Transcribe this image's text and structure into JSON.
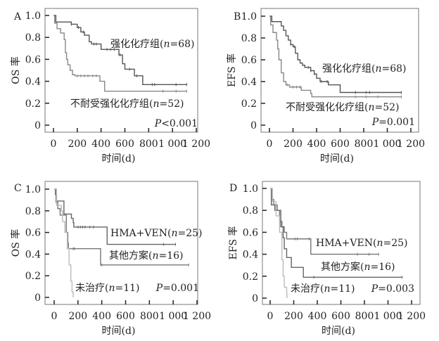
{
  "chart_data": [
    {
      "panel": "A",
      "type": "line",
      "ylabel": "OS 率",
      "xlabel": "时间(d)",
      "xticks": [
        "0",
        "200",
        "400",
        "600",
        "800",
        "1 000",
        "1 200"
      ],
      "yticks": [
        "0",
        "0.2",
        "0.4",
        "0.6",
        "0.8",
        "1.0"
      ],
      "xlim": [
        0,
        1200
      ],
      "ylim": [
        0,
        1
      ],
      "p_sym": "P",
      "p_rest": "<0.001",
      "series": [
        {
          "label_pre": "强化化疗组(",
          "label_n": "n",
          "label_post": "=68)",
          "color": "#555555",
          "steps": [
            [
              0,
              1
            ],
            [
              20,
              0.94
            ],
            [
              130,
              0.94
            ],
            [
              150,
              0.92
            ],
            [
              200,
              0.89
            ],
            [
              230,
              0.85
            ],
            [
              260,
              0.82
            ],
            [
              300,
              0.76
            ],
            [
              320,
              0.74
            ],
            [
              400,
              0.69
            ],
            [
              540,
              0.69
            ],
            [
              550,
              0.64
            ],
            [
              580,
              0.56
            ],
            [
              600,
              0.51
            ],
            [
              680,
              0.45
            ],
            [
              750,
              0.37
            ],
            [
              1120,
              0.37
            ]
          ],
          "censored": [
            150,
            210,
            250,
            340,
            360,
            450,
            480,
            510,
            560,
            640,
            700,
            830,
            850,
            1030,
            1120
          ]
        },
        {
          "label_pre": "不耐受强化化疗组(",
          "label_n": "n",
          "label_post": "=52)",
          "color": "#888888",
          "steps": [
            [
              0,
              1
            ],
            [
              10,
              0.93
            ],
            [
              30,
              0.88
            ],
            [
              60,
              0.84
            ],
            [
              90,
              0.78
            ],
            [
              100,
              0.66
            ],
            [
              110,
              0.6
            ],
            [
              120,
              0.55
            ],
            [
              140,
              0.5
            ],
            [
              160,
              0.46
            ],
            [
              180,
              0.45
            ],
            [
              390,
              0.4
            ],
            [
              430,
              0.31
            ],
            [
              1120,
              0.31
            ]
          ],
          "censored": [
            200,
            230,
            260,
            290,
            330,
            360,
            920,
            1030,
            1120
          ]
        }
      ]
    },
    {
      "panel": "B",
      "type": "line",
      "ylabel": "EFS 率",
      "xlabel": "时间(d)",
      "xticks": [
        "0",
        "200",
        "400",
        "600",
        "800",
        "1 000",
        "1 200"
      ],
      "yticks": [
        "0",
        "0.2",
        "0.4",
        "0.6",
        "0.8",
        "1.0"
      ],
      "xlim": [
        0,
        1200
      ],
      "ylim": [
        0,
        1
      ],
      "p_sym": "P",
      "p_rest": "=0.001",
      "series": [
        {
          "label_pre": "强化化疗组(",
          "label_n": "n",
          "label_post": "=68)",
          "color": "#555555",
          "steps": [
            [
              0,
              1
            ],
            [
              20,
              0.95
            ],
            [
              80,
              0.95
            ],
            [
              100,
              0.91
            ],
            [
              120,
              0.87
            ],
            [
              140,
              0.82
            ],
            [
              160,
              0.78
            ],
            [
              180,
              0.74
            ],
            [
              200,
              0.72
            ],
            [
              220,
              0.66
            ],
            [
              240,
              0.6
            ],
            [
              260,
              0.57
            ],
            [
              280,
              0.55
            ],
            [
              300,
              0.53
            ],
            [
              340,
              0.53
            ],
            [
              350,
              0.5
            ],
            [
              380,
              0.47
            ],
            [
              400,
              0.43
            ],
            [
              430,
              0.4
            ],
            [
              500,
              0.37
            ],
            [
              600,
              0.3
            ],
            [
              1120,
              0.3
            ]
          ],
          "censored": [
            180,
            210,
            330,
            350,
            380,
            440,
            490,
            730,
            820,
            850,
            1120
          ]
        },
        {
          "label_pre": "不耐受强化化疗组(",
          "label_n": "n",
          "label_post": "=52)",
          "color": "#888888",
          "steps": [
            [
              0,
              1
            ],
            [
              10,
              0.92
            ],
            [
              30,
              0.85
            ],
            [
              60,
              0.78
            ],
            [
              70,
              0.7
            ],
            [
              80,
              0.6
            ],
            [
              100,
              0.48
            ],
            [
              120,
              0.4
            ],
            [
              140,
              0.37
            ],
            [
              170,
              0.35
            ],
            [
              270,
              0.32
            ],
            [
              350,
              0.29
            ],
            [
              360,
              0.26
            ],
            [
              1120,
              0.26
            ]
          ],
          "censored": [
            150,
            200,
            230,
            260,
            730,
            820,
            920,
            1120
          ]
        }
      ]
    },
    {
      "panel": "C",
      "type": "line",
      "ylabel": "OS 率",
      "xlabel": "时间(d)",
      "xticks": [
        "0",
        "200",
        "400",
        "600",
        "800",
        "1 000",
        "1 200"
      ],
      "yticks": [
        "0",
        "0.2",
        "0.4",
        "0.6",
        "0.8",
        "1.0"
      ],
      "xlim": [
        0,
        1200
      ],
      "ylim": [
        0,
        1
      ],
      "p_sym": "P",
      "p_rest": "=0.001",
      "series": [
        {
          "label_pre": "HMA+VEN(",
          "label_n": "n",
          "label_post": "=25)",
          "color": "#666666",
          "steps": [
            [
              0,
              1
            ],
            [
              10,
              0.95
            ],
            [
              20,
              0.89
            ],
            [
              80,
              0.89
            ],
            [
              82,
              0.77
            ],
            [
              140,
              0.77
            ],
            [
              145,
              0.73
            ],
            [
              160,
              0.69
            ],
            [
              165,
              0.65
            ],
            [
              440,
              0.65
            ],
            [
              445,
              0.49
            ],
            [
              1020,
              0.49
            ]
          ],
          "censored": [
            200,
            220,
            240,
            260,
            300,
            330,
            920,
            1020
          ]
        },
        {
          "label_pre": "其他方案(",
          "label_n": "n",
          "label_post": "=16)",
          "color": "#777777",
          "steps": [
            [
              0,
              1
            ],
            [
              15,
              0.88
            ],
            [
              30,
              0.82
            ],
            [
              50,
              0.76
            ],
            [
              100,
              0.76
            ],
            [
              102,
              0.6
            ],
            [
              115,
              0.5
            ],
            [
              120,
              0.45
            ],
            [
              380,
              0.45
            ],
            [
              390,
              0.3
            ],
            [
              1130,
              0.3
            ]
          ],
          "censored": [
            160,
            170,
            400,
            1130
          ]
        },
        {
          "label_pre": "未治疗(",
          "label_n": "n",
          "label_post": "=11)",
          "color": "#bbbbbb",
          "steps": [
            [
              0,
              1
            ],
            [
              20,
              0.85
            ],
            [
              60,
              0.8
            ],
            [
              70,
              0.7
            ],
            [
              90,
              0.6
            ],
            [
              110,
              0.45
            ],
            [
              125,
              0.3
            ],
            [
              140,
              0.15
            ],
            [
              150,
              0.05
            ],
            [
              160,
              0
            ]
          ],
          "censored": []
        }
      ]
    },
    {
      "panel": "D",
      "type": "line",
      "ylabel": "EFS 率",
      "xlabel": "时间(d)",
      "xticks": [
        "0",
        "200",
        "400",
        "600",
        "800",
        "1 000",
        "1 200"
      ],
      "yticks": [
        "0",
        "0.2",
        "0.4",
        "0.6",
        "0.8",
        "1.0"
      ],
      "xlim": [
        0,
        1200
      ],
      "ylim": [
        0,
        1
      ],
      "p_sym": "P",
      "p_rest": "=0.003",
      "series": [
        {
          "label_pre": "HMA+VEN(",
          "label_n": "n",
          "label_post": "=25)",
          "color": "#777777",
          "steps": [
            [
              0,
              1
            ],
            [
              10,
              0.9
            ],
            [
              30,
              0.85
            ],
            [
              50,
              0.85
            ],
            [
              60,
              0.8
            ],
            [
              80,
              0.7
            ],
            [
              100,
              0.65
            ],
            [
              120,
              0.6
            ],
            [
              140,
              0.54
            ],
            [
              340,
              0.54
            ],
            [
              345,
              0.4
            ],
            [
              920,
              0.4
            ]
          ],
          "censored": [
            210,
            230,
            330,
            740,
            840,
            920
          ]
        },
        {
          "label_pre": "其他方案(",
          "label_n": "n",
          "label_post": "=16)",
          "color": "#666666",
          "steps": [
            [
              0,
              1
            ],
            [
              10,
              0.85
            ],
            [
              40,
              0.8
            ],
            [
              80,
              0.8
            ],
            [
              90,
              0.65
            ],
            [
              110,
              0.55
            ],
            [
              120,
              0.45
            ],
            [
              140,
              0.37
            ],
            [
              180,
              0.28
            ],
            [
              280,
              0.28
            ],
            [
              282,
              0.19
            ],
            [
              1120,
              0.19
            ]
          ],
          "censored": [
            370,
            1120
          ]
        },
        {
          "label_pre": "未治疗(",
          "label_n": "n",
          "label_post": "=11)",
          "color": "#bbbbbb",
          "steps": [
            [
              0,
              1
            ],
            [
              20,
              0.88
            ],
            [
              50,
              0.75
            ],
            [
              80,
              0.6
            ],
            [
              100,
              0.35
            ],
            [
              110,
              0.2
            ],
            [
              120,
              0.1
            ],
            [
              140,
              0.05
            ],
            [
              142,
              0
            ]
          ],
          "censored": []
        }
      ]
    }
  ]
}
